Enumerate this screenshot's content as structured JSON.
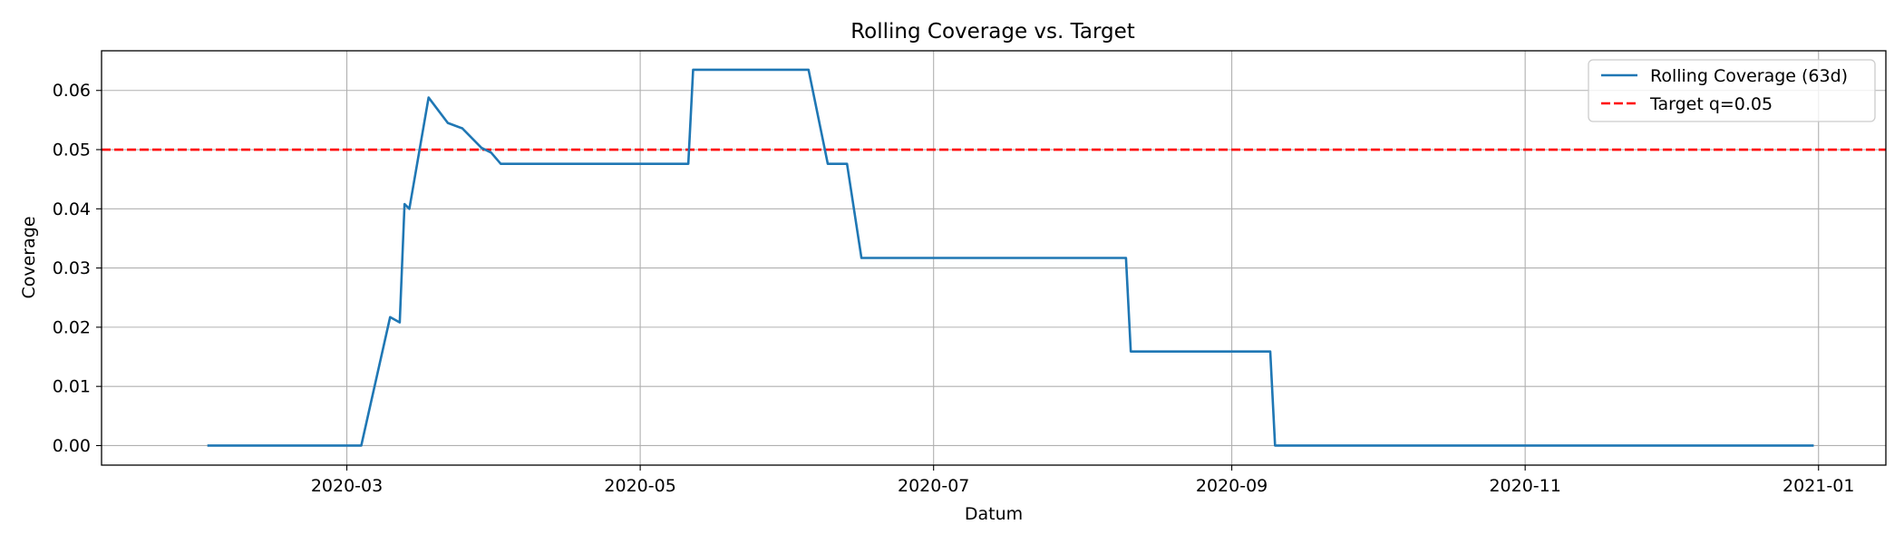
{
  "chart_data": {
    "type": "line",
    "title": "Rolling Coverage vs. Target",
    "xlabel": "Datum",
    "ylabel": "Coverage",
    "x_axis_type": "date",
    "xlim": [
      "2020-01-10",
      "2021-01-15"
    ],
    "ylim": [
      -0.0033,
      0.0667
    ],
    "grid": true,
    "legend_position": "upper right",
    "x_ticks": [
      "2020-03",
      "2020-05",
      "2020-07",
      "2020-09",
      "2020-11",
      "2021-01"
    ],
    "y_ticks": [
      "0.00",
      "0.01",
      "0.02",
      "0.03",
      "0.04",
      "0.05",
      "0.06"
    ],
    "series": [
      {
        "name": "Rolling Coverage (63d)",
        "color": "#1f77b4",
        "style": "solid",
        "points": [
          [
            "2020-02-01",
            0.0
          ],
          [
            "2020-03-04",
            0.0
          ],
          [
            "2020-03-10",
            0.0217
          ],
          [
            "2020-03-12",
            0.0208
          ],
          [
            "2020-03-13",
            0.0408
          ],
          [
            "2020-03-14",
            0.04
          ],
          [
            "2020-03-18",
            0.0588
          ],
          [
            "2020-03-22",
            0.0545
          ],
          [
            "2020-03-25",
            0.0536
          ],
          [
            "2020-03-29",
            0.0503
          ],
          [
            "2020-03-31",
            0.0495
          ],
          [
            "2020-04-02",
            0.0476
          ],
          [
            "2020-05-11",
            0.0476
          ],
          [
            "2020-05-12",
            0.0635
          ],
          [
            "2020-06-05",
            0.0635
          ],
          [
            "2020-06-09",
            0.0476
          ],
          [
            "2020-06-13",
            0.0476
          ],
          [
            "2020-06-16",
            0.0317
          ],
          [
            "2020-08-10",
            0.0317
          ],
          [
            "2020-08-11",
            0.0159
          ],
          [
            "2020-09-09",
            0.0159
          ],
          [
            "2020-09-10",
            0.0
          ],
          [
            "2020-12-31",
            0.0
          ]
        ]
      },
      {
        "name": "Target q=0.05",
        "color": "#ff0000",
        "style": "dashed",
        "horizontal_line": 0.05
      }
    ]
  }
}
